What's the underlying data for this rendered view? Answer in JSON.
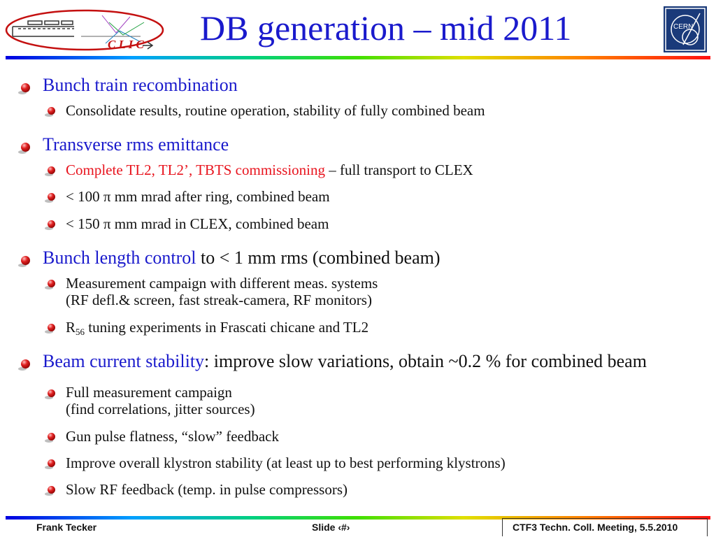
{
  "title": "DB generation – mid 2011",
  "logos": {
    "left": "C L I C",
    "right": "CERN"
  },
  "bullets": {
    "b1": {
      "text": "Bunch train recombination"
    },
    "b1s1": {
      "text": "Consolidate results, routine operation, stability of fully combined beam"
    },
    "b2": {
      "text": "Transverse rms emittance"
    },
    "b2s1": {
      "red": "Complete TL2, TL2’, TBTS commissioning",
      "rest": " – full transport to CLEX"
    },
    "b2s2": {
      "text": "< 100 π mm mrad after ring, combined beam"
    },
    "b2s3": {
      "text": "< 150 π mm mrad in CLEX, combined beam"
    },
    "b3": {
      "blue": "Bunch length control",
      "rest": " to < 1 mm rms (combined beam)"
    },
    "b3s1": {
      "line1": "Measurement campaign with different meas. systems",
      "line2": "(RF defl.& screen, fast streak-camera, RF monitors)"
    },
    "b3s2": {
      "r": "R",
      "sub": "56",
      "rest": " tuning experiments in Frascati chicane and TL2"
    },
    "b4": {
      "blue": "Beam current stability",
      "rest": ": improve slow variations, obtain ~0.2 % for combined beam"
    },
    "b4s1": {
      "line1": "Full measurement campaign",
      "line2": "(find correlations, jitter sources)"
    },
    "b4s2": {
      "text": "Gun pulse flatness, “slow” feedback"
    },
    "b4s3": {
      "text": "Improve overall klystron stability (at least up to best performing klystrons)"
    },
    "b4s4": {
      "text": "Slow RF feedback (temp. in pulse compressors)"
    }
  },
  "footer": {
    "author": "Frank Tecker",
    "slide": "Slide ‹#›",
    "meeting": "CTF3 Techn. Coll. Meeting, 5.5.2010"
  },
  "colors": {
    "title": "#1a1acc",
    "highlight_blue": "#1a1acc",
    "highlight_red": "#e8141e",
    "bullet": "#d01818"
  }
}
